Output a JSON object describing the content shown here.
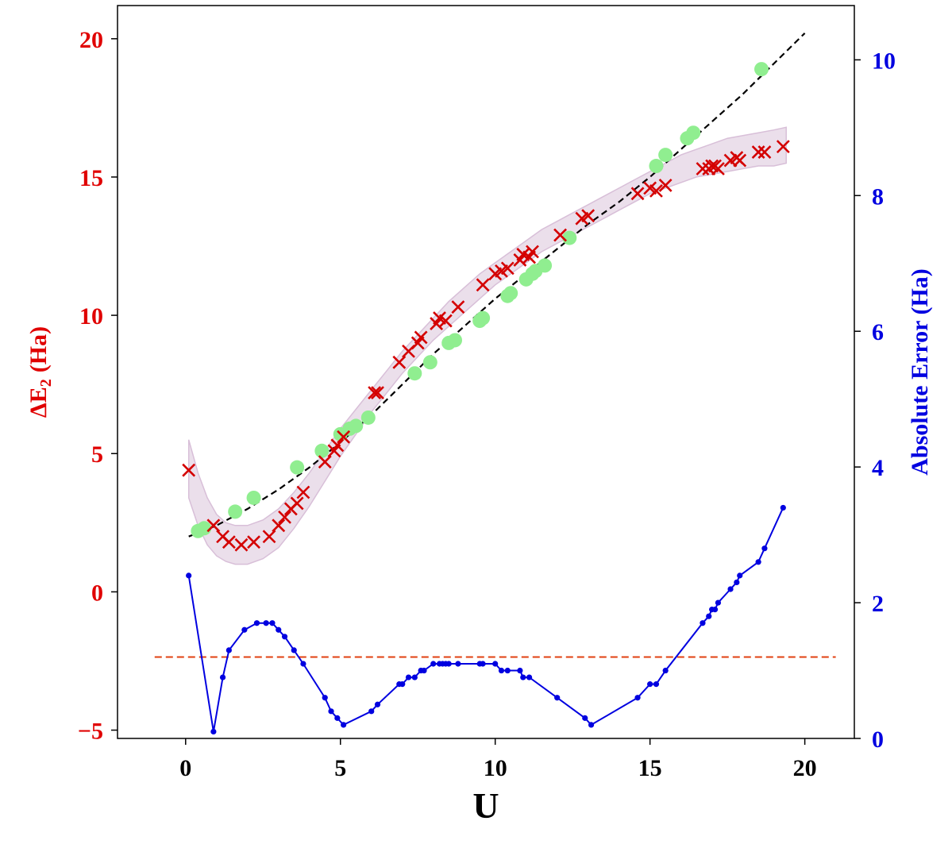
{
  "colors": {
    "left_axis": "#e00000",
    "right_axis": "#0000e0",
    "x_marker": "#d40000",
    "circle_marker": "#90ee90",
    "band": "#d8bfd8",
    "dashed_fit": "#000000",
    "threshold": "#e04010",
    "error_line": "#0000e0"
  },
  "chart_data": {
    "type": "line",
    "xlabel": "U",
    "ylabel_left_base": "ΔE",
    "ylabel_left_sub": "2",
    "ylabel_left_unit": "(Ha)",
    "ylabel_right": "Absolute Error (Ha)",
    "xlim": [
      -2.2,
      21.6
    ],
    "ylim_left": [
      -5.3,
      21.2
    ],
    "ylim_right": [
      0,
      10.8
    ],
    "x_ticks": [
      0,
      5,
      10,
      15,
      20
    ],
    "left_ticks": [
      -5,
      0,
      5,
      10,
      15,
      20
    ],
    "right_ticks": [
      0,
      2,
      4,
      6,
      8,
      10
    ],
    "grid": false,
    "band": {
      "x": [
        0.1,
        0.4,
        0.7,
        1.0,
        1.3,
        1.6,
        2.0,
        2.5,
        3.0,
        3.5,
        4.0,
        4.5,
        5.0,
        5.5,
        6.0,
        6.5,
        7.0,
        7.5,
        8.0,
        8.5,
        9.0,
        9.5,
        10.0,
        10.5,
        11.0,
        11.5,
        12.0,
        12.5,
        13.0,
        13.5,
        14.0,
        14.5,
        15.0,
        15.5,
        16.0,
        16.5,
        17.0,
        17.5,
        18.0,
        18.5,
        19.0,
        19.4
      ],
      "upper": [
        5.5,
        4.3,
        3.4,
        2.8,
        2.5,
        2.4,
        2.4,
        2.6,
        3.0,
        3.6,
        4.3,
        5.1,
        5.9,
        6.6,
        7.3,
        8.0,
        8.7,
        9.3,
        9.9,
        10.5,
        11.0,
        11.5,
        11.9,
        12.3,
        12.7,
        13.1,
        13.4,
        13.7,
        14.0,
        14.3,
        14.6,
        14.9,
        15.2,
        15.5,
        15.8,
        16.0,
        16.2,
        16.4,
        16.5,
        16.6,
        16.7,
        16.8
      ],
      "lower": [
        3.4,
        2.4,
        1.7,
        1.3,
        1.1,
        1.0,
        1.0,
        1.2,
        1.6,
        2.3,
        3.1,
        4.0,
        4.9,
        5.7,
        6.5,
        7.2,
        7.9,
        8.5,
        9.1,
        9.6,
        10.1,
        10.6,
        11.1,
        11.5,
        11.9,
        12.3,
        12.6,
        12.9,
        13.2,
        13.5,
        13.8,
        14.1,
        14.4,
        14.6,
        14.8,
        15.0,
        15.1,
        15.2,
        15.3,
        15.4,
        15.4,
        15.5
      ]
    },
    "series": [
      {
        "marker": "x",
        "x": [
          0.1,
          0.9,
          1.2,
          1.4,
          1.8,
          2.2,
          2.7,
          3.0,
          3.2,
          3.4,
          3.6,
          3.8,
          4.5,
          4.8,
          4.9,
          5.1,
          6.1,
          6.2,
          6.9,
          7.2,
          7.5,
          7.6,
          8.1,
          8.2,
          8.4,
          8.8,
          9.6,
          10.0,
          10.2,
          10.4,
          10.8,
          10.9,
          11.1,
          11.2,
          12.1,
          12.8,
          13.0,
          14.6,
          15.0,
          15.2,
          15.5,
          16.7,
          16.9,
          17.0,
          17.1,
          17.2,
          17.6,
          17.8,
          17.9,
          18.5,
          18.7,
          19.3
        ],
        "y": [
          4.4,
          2.4,
          2.0,
          1.8,
          1.7,
          1.8,
          2.0,
          2.4,
          2.7,
          3.0,
          3.2,
          3.6,
          4.7,
          5.1,
          5.3,
          5.6,
          7.2,
          7.2,
          8.3,
          8.7,
          9.0,
          9.2,
          9.7,
          9.9,
          9.8,
          10.3,
          11.1,
          11.5,
          11.6,
          11.7,
          12.0,
          12.2,
          12.1,
          12.3,
          12.9,
          13.5,
          13.6,
          14.4,
          14.6,
          14.5,
          14.7,
          15.3,
          15.3,
          15.4,
          15.4,
          15.3,
          15.6,
          15.7,
          15.6,
          15.9,
          15.9,
          16.1
        ]
      },
      {
        "marker": "circle",
        "x": [
          0.4,
          0.6,
          1.6,
          2.2,
          3.6,
          4.4,
          5.0,
          5.3,
          5.5,
          5.9,
          7.4,
          7.9,
          8.5,
          8.7,
          9.5,
          9.6,
          10.4,
          10.5,
          11.0,
          11.2,
          11.3,
          11.6,
          12.4,
          15.2,
          15.5,
          16.2,
          16.4,
          18.6
        ],
        "y": [
          2.2,
          2.3,
          2.9,
          3.4,
          4.5,
          5.1,
          5.7,
          5.9,
          6.0,
          6.3,
          7.9,
          8.3,
          9.0,
          9.1,
          9.8,
          9.9,
          10.7,
          10.8,
          11.3,
          11.5,
          11.6,
          11.8,
          12.8,
          15.4,
          15.8,
          16.4,
          16.6,
          18.9
        ]
      },
      {
        "marker": "dashed",
        "x": [
          0.1,
          1.0,
          2.0,
          3.0,
          4.0,
          5.0,
          6.0,
          7.0,
          8.0,
          9.0,
          10.0,
          11.0,
          12.0,
          13.0,
          14.0,
          15.0,
          16.0,
          17.0,
          18.0,
          19.0,
          20.0
        ],
        "y": [
          2.0,
          2.4,
          3.0,
          3.7,
          4.5,
          5.4,
          6.4,
          7.5,
          8.6,
          9.6,
          10.6,
          11.5,
          12.4,
          13.3,
          14.1,
          15.0,
          16.0,
          17.0,
          18.0,
          19.1,
          20.2
        ]
      },
      {
        "marker": "dot-line",
        "axis": "right",
        "x": [
          0.1,
          0.9,
          1.2,
          1.4,
          1.9,
          2.3,
          2.6,
          2.8,
          3.0,
          3.2,
          3.5,
          3.8,
          4.5,
          4.7,
          4.9,
          5.1,
          6.0,
          6.2,
          6.9,
          7.0,
          7.2,
          7.4,
          7.6,
          7.7,
          8.0,
          8.2,
          8.3,
          8.4,
          8.5,
          8.8,
          9.5,
          9.6,
          10.0,
          10.2,
          10.4,
          10.8,
          10.9,
          11.1,
          12.0,
          12.9,
          13.1,
          14.6,
          15.0,
          15.2,
          15.5,
          16.7,
          16.9,
          17.0,
          17.1,
          17.2,
          17.6,
          17.8,
          17.9,
          18.5,
          18.7,
          19.3
        ],
        "y": [
          2.4,
          0.1,
          0.9,
          1.3,
          1.6,
          1.7,
          1.7,
          1.7,
          1.6,
          1.5,
          1.3,
          1.1,
          0.6,
          0.4,
          0.3,
          0.2,
          0.4,
          0.5,
          0.8,
          0.8,
          0.9,
          0.9,
          1.0,
          1.0,
          1.1,
          1.1,
          1.1,
          1.1,
          1.1,
          1.1,
          1.1,
          1.1,
          1.1,
          1.0,
          1.0,
          1.0,
          0.9,
          0.9,
          0.6,
          0.3,
          0.2,
          0.6,
          0.8,
          0.8,
          1.0,
          1.7,
          1.8,
          1.9,
          1.9,
          2.0,
          2.2,
          2.3,
          2.4,
          2.6,
          2.8,
          3.4
        ]
      }
    ],
    "threshold_right_y": 1.2,
    "threshold_x": [
      -1.0,
      21.0
    ]
  }
}
